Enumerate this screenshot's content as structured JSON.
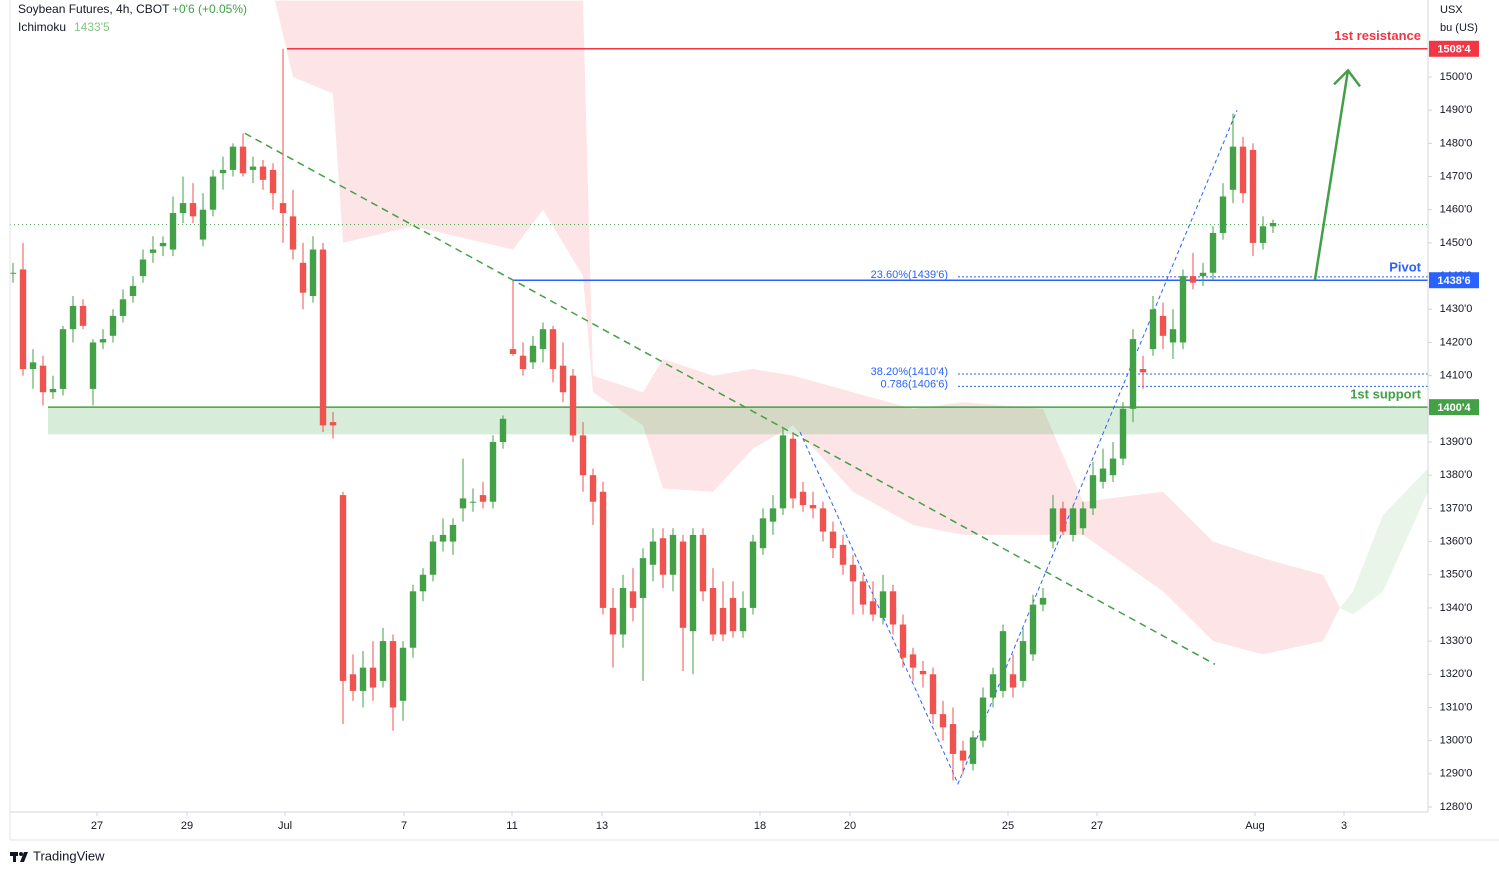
{
  "chart_data": {
    "type": "candlestick",
    "title": "Soybean Futures, 4h, CBOT",
    "change": "+0'6 (+0.05%)",
    "indicator": {
      "name": "Ichimoku",
      "value_label": "1433'5"
    },
    "unit": "USX",
    "unit2": "bu (US)",
    "brand": "TradingView",
    "up_color": "#43a047",
    "down_color": "#ef5350",
    "xlim": [
      -0.3,
      141.5
    ],
    "ylim": [
      1278.5,
      1523.2
    ],
    "grid": false,
    "xticks": [
      {
        "value": 8.4,
        "label": "27"
      },
      {
        "value": 17.4,
        "label": "29"
      },
      {
        "value": 27.2,
        "label": "Jul"
      },
      {
        "value": 39.1,
        "label": "7"
      },
      {
        "value": 49.9,
        "label": "11"
      },
      {
        "value": 58.9,
        "label": "13"
      },
      {
        "value": 74.7,
        "label": "18"
      },
      {
        "value": 83.7,
        "label": "20"
      },
      {
        "value": 99.5,
        "label": "25"
      },
      {
        "value": 108.4,
        "label": "27"
      },
      {
        "value": 124.2,
        "label": "Aug"
      },
      {
        "value": 133.1,
        "label": "3"
      }
    ],
    "yticks": [
      {
        "value": 1280,
        "label": "1280'0"
      },
      {
        "value": 1290,
        "label": "1290'0"
      },
      {
        "value": 1300,
        "label": "1300'0"
      },
      {
        "value": 1310,
        "label": "1310'0"
      },
      {
        "value": 1320,
        "label": "1320'0"
      },
      {
        "value": 1330,
        "label": "1330'0"
      },
      {
        "value": 1340,
        "label": "1340'0"
      },
      {
        "value": 1350,
        "label": "1350'0"
      },
      {
        "value": 1360,
        "label": "1360'0"
      },
      {
        "value": 1370,
        "label": "1370'0"
      },
      {
        "value": 1380,
        "label": "1380'0"
      },
      {
        "value": 1390,
        "label": "1390'0"
      },
      {
        "value": 1400,
        "label": "1400'0"
      },
      {
        "value": 1410,
        "label": "1410'0"
      },
      {
        "value": 1420,
        "label": "1420'0"
      },
      {
        "value": 1430,
        "label": "1430'0"
      },
      {
        "value": 1440,
        "label": "1440'0"
      },
      {
        "value": 1450,
        "label": "1450'0"
      },
      {
        "value": 1460,
        "label": "1460'0"
      },
      {
        "value": 1470,
        "label": "1470'0"
      },
      {
        "value": 1480,
        "label": "1480'0"
      },
      {
        "value": 1490,
        "label": "1490'0"
      },
      {
        "value": 1500,
        "label": "1500'0"
      }
    ],
    "ohlc": [
      [
        1441,
        1444,
        1438,
        1441
      ],
      [
        1442,
        1450,
        1410,
        1412
      ],
      [
        1412,
        1418,
        1406,
        1414
      ],
      [
        1413,
        1416,
        1401,
        1405
      ],
      [
        1405,
        1410,
        1403,
        1406
      ],
      [
        1406,
        1425,
        1404,
        1424
      ],
      [
        1424,
        1434,
        1420,
        1431
      ],
      [
        1431,
        1433,
        1424,
        1425
      ],
      [
        1406,
        1421,
        1401,
        1420
      ],
      [
        1420,
        1424,
        1418,
        1421
      ],
      [
        1422,
        1430,
        1420,
        1428
      ],
      [
        1428,
        1436,
        1426,
        1433
      ],
      [
        1434,
        1440,
        1432,
        1437
      ],
      [
        1440,
        1448,
        1438,
        1445
      ],
      [
        1447,
        1452,
        1444,
        1448
      ],
      [
        1449,
        1452,
        1446,
        1450
      ],
      [
        1448,
        1464,
        1446,
        1459
      ],
      [
        1459,
        1470,
        1456,
        1462
      ],
      [
        1462,
        1468,
        1456,
        1458
      ],
      [
        1451,
        1465,
        1449,
        1460
      ],
      [
        1460,
        1472,
        1458,
        1470
      ],
      [
        1471,
        1476,
        1466,
        1472
      ],
      [
        1472,
        1480,
        1470,
        1479
      ],
      [
        1479,
        1483,
        1470,
        1471
      ],
      [
        1472,
        1476,
        1468,
        1473
      ],
      [
        1473,
        1475,
        1466,
        1469
      ],
      [
        1472,
        1474,
        1460,
        1465
      ],
      [
        1462,
        1508.5,
        1450,
        1459
      ],
      [
        1458,
        1466,
        1445,
        1448
      ],
      [
        1444,
        1450,
        1430,
        1435
      ],
      [
        1434,
        1452,
        1432,
        1448
      ],
      [
        1448,
        1450,
        1393,
        1395
      ],
      [
        1396,
        1399,
        1391,
        1395
      ],
      [
        1374,
        1375,
        1305,
        1318
      ],
      [
        1320,
        1326,
        1312,
        1315
      ],
      [
        1315,
        1327,
        1310,
        1322
      ],
      [
        1322,
        1330,
        1312,
        1316
      ],
      [
        1318,
        1334,
        1316,
        1330
      ],
      [
        1330,
        1332,
        1303,
        1310
      ],
      [
        1312,
        1330,
        1306,
        1328
      ],
      [
        1328,
        1347,
        1325,
        1345
      ],
      [
        1345,
        1352,
        1342,
        1350
      ],
      [
        1350,
        1362,
        1348,
        1360
      ],
      [
        1360,
        1367,
        1357,
        1362
      ],
      [
        1360,
        1367,
        1356,
        1365
      ],
      [
        1370,
        1385,
        1366,
        1373
      ],
      [
        1372,
        1376,
        1369,
        1372
      ],
      [
        1374,
        1378,
        1370,
        1372
      ],
      [
        1372,
        1392,
        1370,
        1390
      ],
      [
        1390,
        1398,
        1388,
        1397
      ],
      [
        1418,
        1438.5,
        1416,
        1416.5
      ],
      [
        1416,
        1420,
        1410,
        1412
      ],
      [
        1414,
        1422,
        1412,
        1419
      ],
      [
        1418,
        1426,
        1414,
        1424
      ],
      [
        1424,
        1425,
        1408,
        1412
      ],
      [
        1413,
        1420,
        1402,
        1405
      ],
      [
        1410,
        1412,
        1390,
        1392
      ],
      [
        1392,
        1396,
        1375,
        1380
      ],
      [
        1380,
        1382,
        1365,
        1372
      ],
      [
        1375,
        1378,
        1338,
        1340
      ],
      [
        1340,
        1346,
        1322,
        1332
      ],
      [
        1332,
        1350,
        1328,
        1346
      ],
      [
        1345,
        1352,
        1336,
        1340
      ],
      [
        1343,
        1358,
        1318,
        1355
      ],
      [
        1353,
        1364,
        1348,
        1360
      ],
      [
        1361,
        1364,
        1346,
        1350
      ],
      [
        1350,
        1364,
        1345,
        1362
      ],
      [
        1360,
        1362,
        1321,
        1334
      ],
      [
        1333,
        1364,
        1320,
        1362
      ],
      [
        1362,
        1364,
        1342,
        1345
      ],
      [
        1346,
        1352,
        1330,
        1332
      ],
      [
        1340,
        1348,
        1330,
        1332
      ],
      [
        1343,
        1348,
        1331,
        1333
      ],
      [
        1333,
        1345,
        1331,
        1340
      ],
      [
        1340,
        1362,
        1338,
        1360
      ],
      [
        1358,
        1370,
        1356,
        1367
      ],
      [
        1366,
        1374,
        1362,
        1370
      ],
      [
        1370,
        1394,
        1368,
        1392
      ],
      [
        1391,
        1393,
        1370,
        1373
      ],
      [
        1375,
        1378,
        1369,
        1371
      ],
      [
        1371,
        1375,
        1367,
        1370
      ],
      [
        1370,
        1372,
        1360,
        1363
      ],
      [
        1363,
        1366,
        1355,
        1358
      ],
      [
        1359,
        1362,
        1350,
        1353
      ],
      [
        1353,
        1356,
        1338,
        1348
      ],
      [
        1348,
        1350,
        1338,
        1341
      ],
      [
        1342,
        1348,
        1336,
        1338
      ],
      [
        1337,
        1350,
        1335,
        1345
      ],
      [
        1345,
        1347,
        1332,
        1335
      ],
      [
        1335,
        1338,
        1322,
        1325
      ],
      [
        1326,
        1328,
        1318,
        1322
      ],
      [
        1321,
        1324,
        1316,
        1320
      ],
      [
        1320,
        1322,
        1305,
        1308
      ],
      [
        1308,
        1312,
        1300,
        1304
      ],
      [
        1305,
        1310,
        1288,
        1296
      ],
      [
        1297,
        1300,
        1290,
        1294
      ],
      [
        1293,
        1303,
        1291,
        1301
      ],
      [
        1300,
        1316,
        1298,
        1313
      ],
      [
        1313,
        1322,
        1310,
        1320
      ],
      [
        1315,
        1335,
        1313,
        1333
      ],
      [
        1320,
        1326,
        1313,
        1316
      ],
      [
        1318,
        1334,
        1316,
        1330
      ],
      [
        1326,
        1344,
        1324,
        1341
      ],
      [
        1341,
        1346,
        1339,
        1343
      ],
      [
        1360,
        1374,
        1358,
        1370
      ],
      [
        1370,
        1372,
        1362,
        1363
      ],
      [
        1362,
        1371,
        1360,
        1370
      ],
      [
        1364,
        1372,
        1362,
        1370
      ],
      [
        1370,
        1384,
        1368,
        1380
      ],
      [
        1378,
        1388,
        1376,
        1382
      ],
      [
        1380,
        1390,
        1378,
        1385
      ],
      [
        1385,
        1402,
        1383,
        1400
      ],
      [
        1400,
        1424,
        1396,
        1421
      ],
      [
        1412,
        1416,
        1406,
        1411
      ],
      [
        1418,
        1434,
        1416,
        1430
      ],
      [
        1428,
        1432,
        1418,
        1422
      ],
      [
        1420,
        1430,
        1415,
        1424
      ],
      [
        1420,
        1442,
        1418,
        1440
      ],
      [
        1440,
        1447,
        1436,
        1438
      ],
      [
        1440,
        1444,
        1437,
        1441
      ],
      [
        1441,
        1455,
        1439,
        1453
      ],
      [
        1453,
        1468,
        1451,
        1464
      ],
      [
        1466,
        1489,
        1462,
        1479
      ],
      [
        1479,
        1482,
        1462,
        1465
      ],
      [
        1478,
        1480,
        1446,
        1450
      ],
      [
        1450,
        1458,
        1448,
        1455
      ],
      [
        1455,
        1457,
        1453,
        1456
      ]
    ],
    "cloud": {
      "color": "rgba(242,54,69,0.13)",
      "x": [
        26.2,
        28,
        32,
        33,
        40,
        50,
        53,
        57,
        58,
        63,
        65,
        70,
        74,
        78,
        84,
        90,
        95,
        103,
        107,
        115,
        120,
        125,
        131,
        132.7
      ],
      "upper": [
        1523,
        1523,
        1523,
        1523,
        1523,
        1523,
        1523,
        1523,
        1410,
        1405,
        1415,
        1410,
        1412,
        1410,
        1405,
        1400,
        1402,
        1400,
        1372,
        1375,
        1360,
        1355,
        1350,
        1340
      ],
      "lower": [
        1523,
        1500,
        1495,
        1450,
        1455,
        1448,
        1460,
        1440,
        1405,
        1395,
        1376,
        1375,
        1388,
        1395,
        1375,
        1365,
        1362,
        1362,
        1362,
        1345,
        1330,
        1326,
        1330,
        1340
      ]
    },
    "cloud2": {
      "color": "rgba(76,175,80,0.13)",
      "x": [
        132.7,
        134,
        137,
        141.5
      ],
      "upper": [
        1340,
        1345,
        1368,
        1382
      ],
      "lower": [
        1340,
        1338,
        1345,
        1375
      ]
    },
    "last": 1455.5,
    "levels": [
      {
        "name": "1st resistance",
        "value": 1508.5,
        "tag": "1508'4",
        "start": 27.4,
        "color": "#f23645"
      },
      {
        "name": "Pivot",
        "value": 1438.75,
        "tag": "1438'6",
        "start": 50,
        "color": "#2962ff"
      },
      {
        "name": "1st support",
        "value": 1400.5,
        "tag": "1400'4",
        "start": 3.5,
        "zone_low": 1392.3,
        "color": "#43a047"
      }
    ],
    "fib_levels": [
      {
        "label": "23.60%(1439'6)",
        "value": 1439.75,
        "start": 94.5
      },
      {
        "label": "38.20%(1410'4)",
        "value": 1410.5,
        "start": 94.5
      },
      {
        "label": "0.786(1406'6)",
        "value": 1406.75,
        "start": 94.5
      }
    ],
    "trendline": {
      "x": [
        23.2,
        120.2
      ],
      "y": [
        1483,
        1323
      ]
    },
    "fib_path": {
      "x": [
        78.7,
        94.5,
        122.4
      ],
      "y": [
        1393,
        1287,
        1490
      ]
    },
    "arrow": {
      "x": [
        130.2,
        133.5
      ],
      "y": [
        1439,
        1502
      ]
    }
  }
}
